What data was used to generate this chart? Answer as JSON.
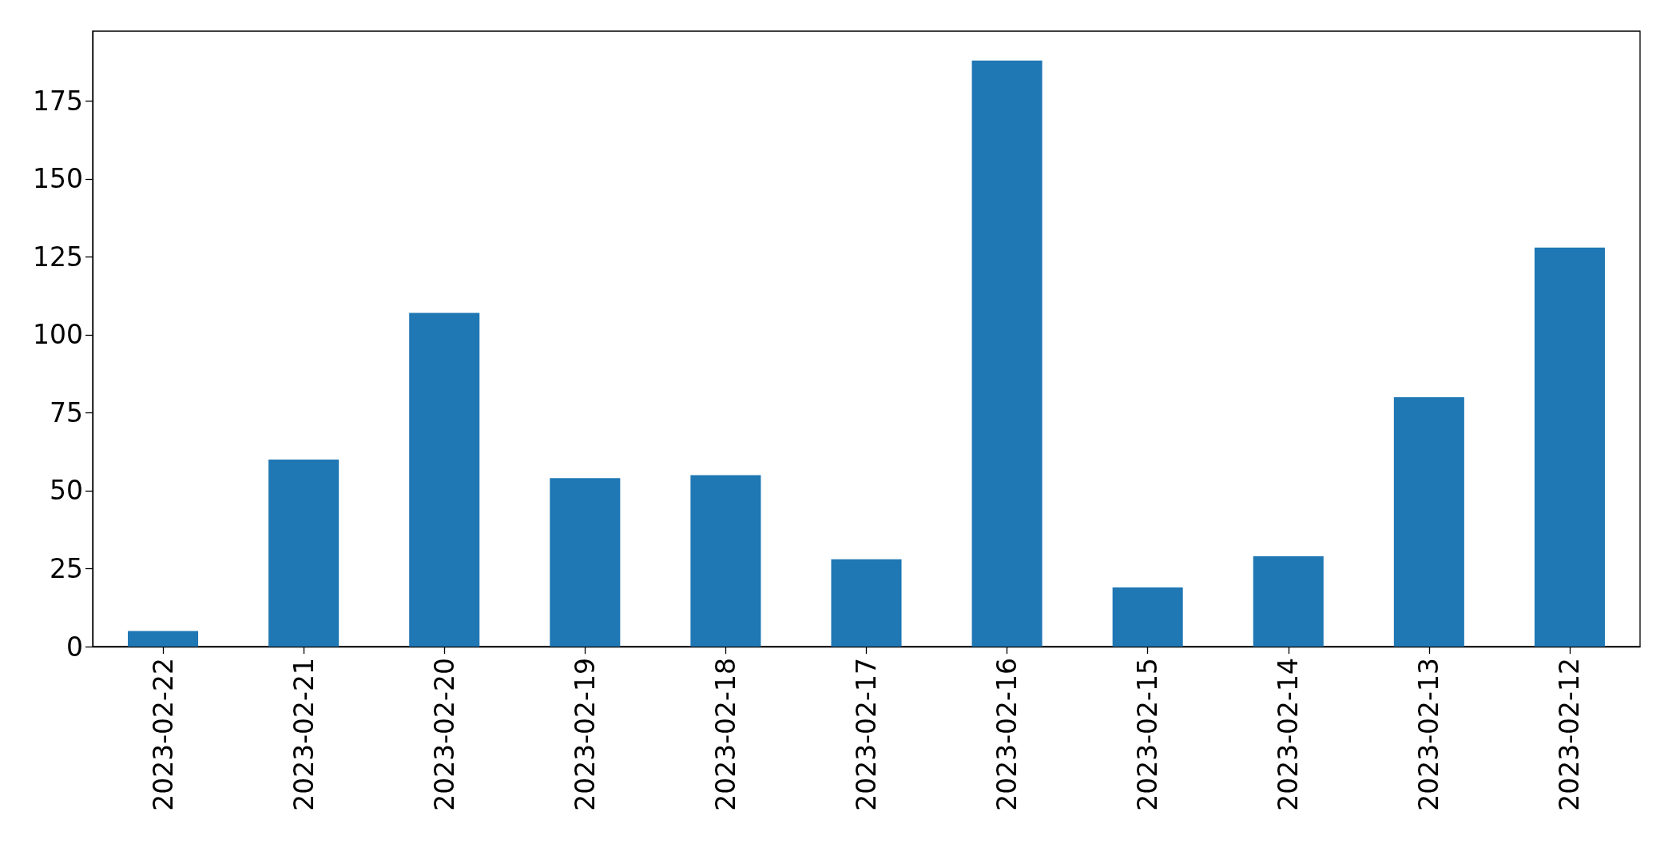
{
  "chart_data": {
    "type": "bar",
    "categories": [
      "2023-02-22",
      "2023-02-21",
      "2023-02-20",
      "2023-02-19",
      "2023-02-18",
      "2023-02-17",
      "2023-02-16",
      "2023-02-15",
      "2023-02-14",
      "2023-02-13",
      "2023-02-12"
    ],
    "values": [
      5,
      60,
      107,
      54,
      55,
      28,
      188,
      19,
      29,
      80,
      128
    ],
    "color": "#1f77b4",
    "ylim": [
      0,
      197.4
    ],
    "yticks": [
      0,
      25,
      50,
      75,
      100,
      125,
      150,
      175
    ],
    "grid": false
  }
}
